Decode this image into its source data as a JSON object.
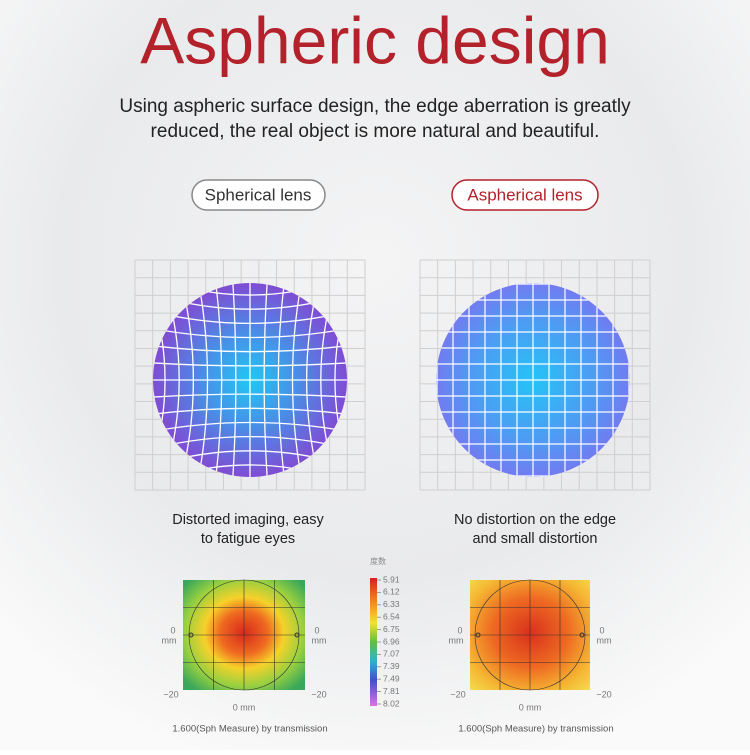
{
  "header": {
    "title": "Aspheric design",
    "subtitle": [
      "Using aspheric surface design, the edge aberration is greatly",
      "reduced, the real object is more natural and beautiful."
    ]
  },
  "lenses": [
    {
      "label": "Spherical lens",
      "caption": [
        "Distorted imaging, easy",
        "to fatigue eyes"
      ]
    },
    {
      "label": "Aspherical lens",
      "caption": [
        "No distortion on the edge",
        "and small distortion"
      ]
    }
  ],
  "heatmaps": [
    {
      "left_label": [
        "0",
        "mm"
      ],
      "right_label": [
        "0",
        "mm"
      ],
      "bottom_labels": [
        "−20",
        "0 mm",
        "−20"
      ],
      "caption": "1.600(Sph Measure) by transmission"
    },
    {
      "left_label": [
        "0",
        "mm"
      ],
      "right_label": [
        "0",
        "mm"
      ],
      "bottom_labels": [
        "−20",
        "0 mm",
        "−20"
      ],
      "caption": "1.600(Sph Measure) by transmission"
    }
  ],
  "scale": {
    "title": "度数",
    "ticks": [
      5.91,
      6.12,
      6.33,
      6.54,
      6.75,
      6.96,
      7.07,
      7.39,
      7.49,
      7.81,
      8.02
    ]
  }
}
